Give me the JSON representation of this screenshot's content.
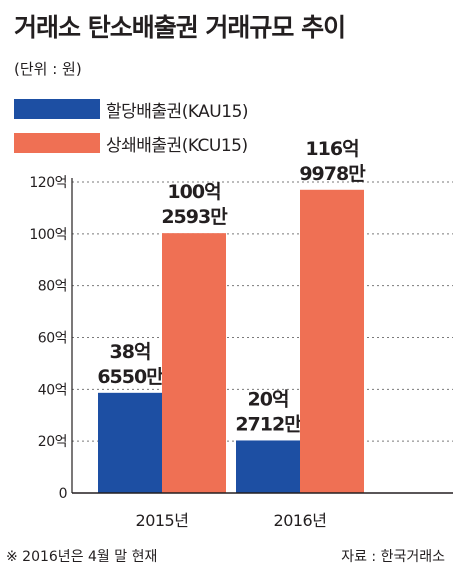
{
  "title": "거래소 탄소배출권 거래규모 추이",
  "unit_note": "(단위 : 원)",
  "footnote": "※ 2016년은 4월 말 현재",
  "source": "자료 : 한국거래소",
  "colors": {
    "kau": "#1d4fa3",
    "kcu": "#ef7054",
    "grid": "#7a7a7a",
    "axis": "#231f20"
  },
  "chart_data": {
    "type": "bar",
    "categories": [
      "2015년",
      "2016년"
    ],
    "series": [
      {
        "name": "할당배출권(KAU15)",
        "values": [
          38.655,
          20.2712
        ],
        "labels": [
          [
            "38억",
            "6550만"
          ],
          [
            "20억",
            "2712만"
          ]
        ]
      },
      {
        "name": "상쇄배출권(KCU15)",
        "values": [
          100.2593,
          116.9978
        ],
        "labels": [
          [
            "100억",
            "2593만"
          ],
          [
            "116억",
            "9978만"
          ]
        ]
      }
    ],
    "ylim": [
      0,
      120
    ],
    "yticks": [
      0,
      20,
      40,
      60,
      80,
      100,
      120
    ],
    "ytick_labels": [
      "0",
      "20억",
      "40억",
      "60억",
      "80억",
      "100억",
      "120억"
    ],
    "grid": true,
    "legend": "top-left"
  }
}
